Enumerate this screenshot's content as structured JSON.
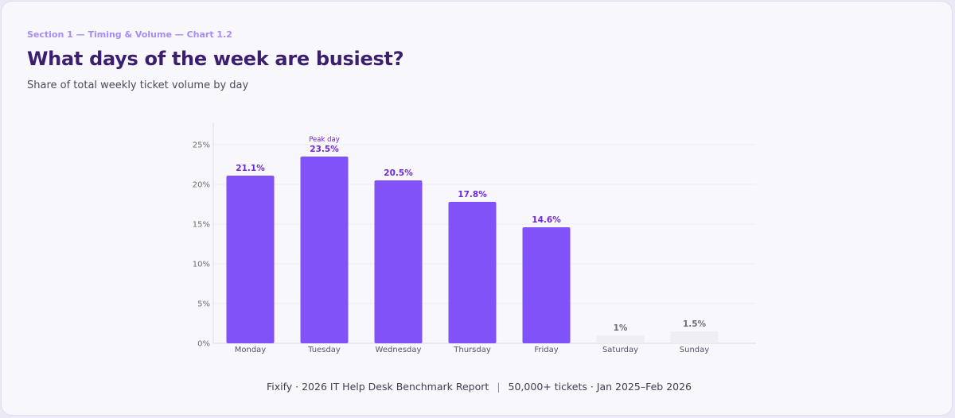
{
  "header": {
    "kicker": "Section 1 — Timing & Volume — Chart 1.2",
    "title": "What days of the week are busiest?",
    "subtitle": "Share of total weekly ticket volume by day"
  },
  "chart_data": {
    "type": "bar",
    "categories": [
      "Monday",
      "Tuesday",
      "Wednesday",
      "Thursday",
      "Friday",
      "Saturday",
      "Sunday"
    ],
    "values": [
      21.1,
      23.5,
      20.5,
      17.8,
      14.6,
      1,
      1.5
    ],
    "value_labels": [
      "21.1%",
      "23.5%",
      "20.5%",
      "17.8%",
      "14.6%",
      "1%",
      "1.5%"
    ],
    "yticks": [
      0,
      5,
      10,
      15,
      20,
      25
    ],
    "ytick_labels": [
      "0%",
      "5%",
      "10%",
      "15%",
      "20%",
      "25%"
    ],
    "ylim": [
      0,
      27
    ],
    "annotations": [
      {
        "category": "Tuesday",
        "text": "Peak day"
      }
    ],
    "grid": true,
    "xlabel": "",
    "ylabel": "",
    "colors": {
      "weekday_bar": "#8152f8",
      "weekend_bar": "#eeeef3",
      "weekday_label": "#6d28d9",
      "weekend_label": "#6b6b78",
      "grid": "#efeef4",
      "axis": "#dcdbe4"
    }
  },
  "footer": {
    "source": "Fixify · 2026 IT Help Desk Benchmark Report",
    "separator": "|",
    "sample": "50,000+ tickets · Jan 2025–Feb 2026"
  }
}
